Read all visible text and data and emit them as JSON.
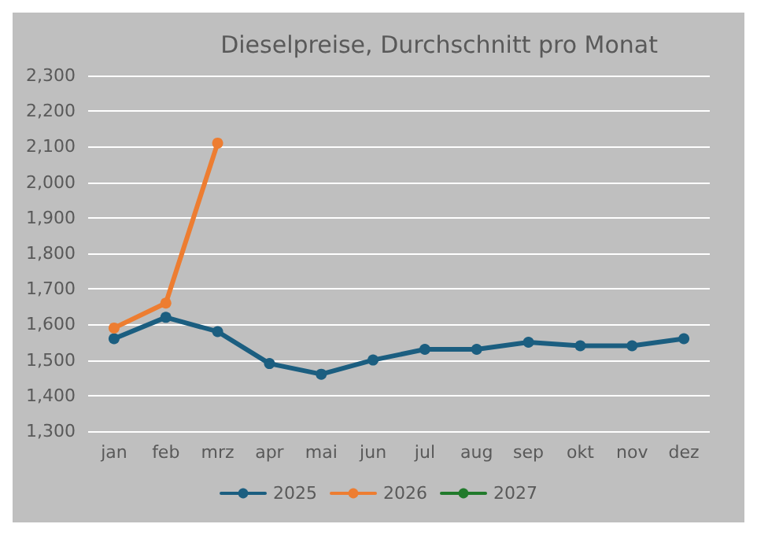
{
  "chart_data": {
    "type": "line",
    "title": "Dieselpreise, Durchschnitt pro Monat",
    "categories": [
      "jan",
      "feb",
      "mrz",
      "apr",
      "mai",
      "jun",
      "jul",
      "aug",
      "sep",
      "okt",
      "nov",
      "dez"
    ],
    "series": [
      {
        "name": "2025",
        "color": "#1b5e80",
        "values": [
          1560,
          1620,
          1580,
          1490,
          1460,
          1500,
          1530,
          1530,
          1550,
          1540,
          1540,
          1560
        ]
      },
      {
        "name": "2026",
        "color": "#ed7d31",
        "values": [
          1590,
          1660,
          2110,
          null,
          null,
          null,
          null,
          null,
          null,
          null,
          null,
          null
        ]
      },
      {
        "name": "2027",
        "color": "#217a2b",
        "values": [
          null,
          null,
          null,
          null,
          null,
          null,
          null,
          null,
          null,
          null,
          null,
          null
        ]
      }
    ],
    "ylim": [
      1300,
      2300
    ],
    "yticks": [
      {
        "value": 1300,
        "label": "1,300"
      },
      {
        "value": 1400,
        "label": "1,400"
      },
      {
        "value": 1500,
        "label": "1,500"
      },
      {
        "value": 1600,
        "label": "1,600"
      },
      {
        "value": 1700,
        "label": "1,700"
      },
      {
        "value": 1800,
        "label": "1,800"
      },
      {
        "value": 1900,
        "label": "1,900"
      },
      {
        "value": 2000,
        "label": "2,000"
      },
      {
        "value": 2100,
        "label": "2,100"
      },
      {
        "value": 2200,
        "label": "2,200"
      },
      {
        "value": 2300,
        "label": "2,300"
      }
    ],
    "grid": "y",
    "legend": "bottom",
    "marker": "circle",
    "line_style": "solid"
  }
}
